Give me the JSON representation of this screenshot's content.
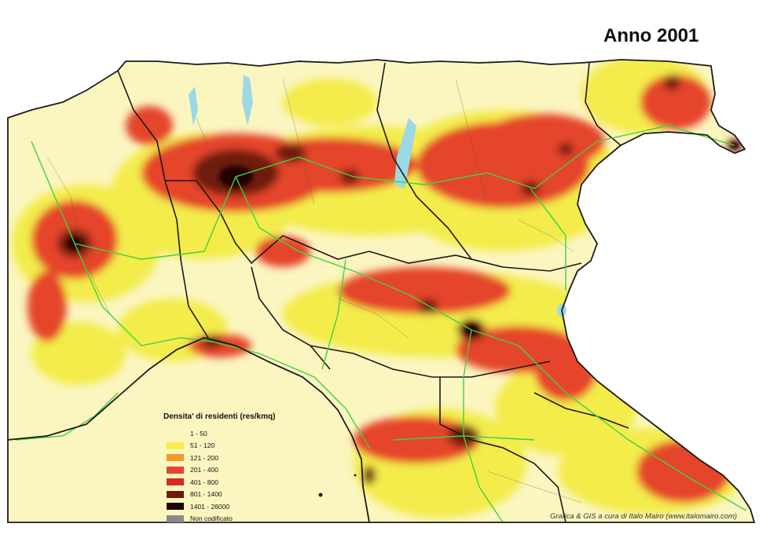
{
  "map": {
    "title": "Anno 2001",
    "colors": {
      "sea": "#ffffff",
      "land": "#fbf5c0",
      "border": "#1a1a1a",
      "road": "#3fd23f",
      "lake": "#9dd8e6"
    }
  },
  "legend": {
    "title": "Densita' di residenti (res/kmq)",
    "items": [
      {
        "label": "1 - 50",
        "color": "#fbf5c0"
      },
      {
        "label": "51 - 120",
        "color": "#f3ec4c"
      },
      {
        "label": "121 - 200",
        "color": "#f09a2a"
      },
      {
        "label": "201 - 400",
        "color": "#e5452a"
      },
      {
        "label": "401 - 800",
        "color": "#d8281f"
      },
      {
        "label": "801 - 1400",
        "color": "#6e1a10"
      },
      {
        "label": "1401 - 26000",
        "color": "#200603"
      },
      {
        "label": "Non codificato",
        "color": "#8a8a8a"
      }
    ]
  },
  "credit": "Grafica & GIS a cura di Italo Mairo (www.italomairo.com)"
}
